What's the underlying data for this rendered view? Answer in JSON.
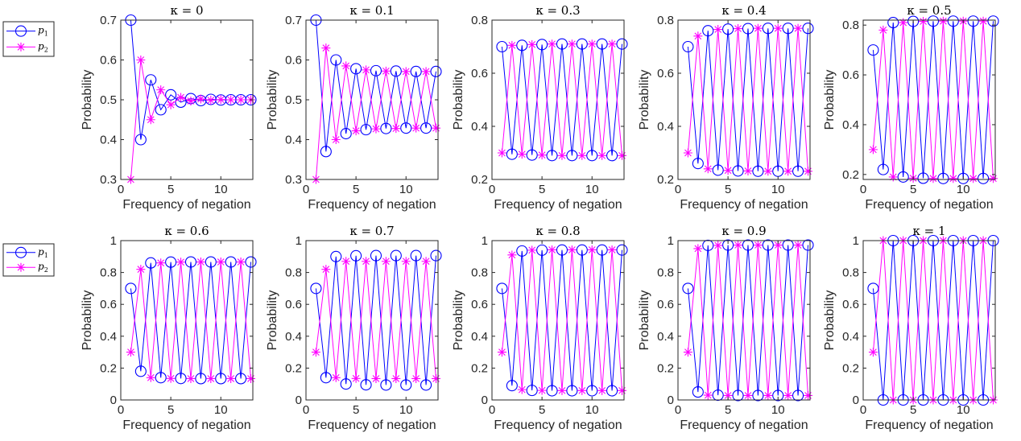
{
  "figure": {
    "legend": {
      "entries": [
        {
          "label": "p",
          "subscript": "1",
          "color": "#0000FF",
          "marker": "circle"
        },
        {
          "label": "p",
          "subscript": "2",
          "color": "#FF00FF",
          "marker": "asterisk"
        }
      ]
    }
  },
  "chart_data": [
    {
      "type": "line",
      "title": "κ = 0",
      "xlabel": "Frequency of negation",
      "ylabel": "Probability",
      "xlim": [
        0,
        13.2
      ],
      "ylim": [
        0.3,
        0.7
      ],
      "xticks": [
        0,
        5,
        10
      ],
      "yticks": [
        0.3,
        0.4,
        0.5,
        0.6,
        0.7
      ],
      "x": [
        1,
        2,
        3,
        4,
        5,
        6,
        7,
        8,
        9,
        10,
        11,
        12,
        13
      ],
      "series": [
        {
          "name": "p1",
          "color": "#0000FF",
          "marker": "circle",
          "values": [
            0.7,
            0.4,
            0.55,
            0.475,
            0.5125,
            0.494,
            0.503,
            0.498,
            0.501,
            0.4995,
            0.5,
            0.5,
            0.5
          ]
        },
        {
          "name": "p2",
          "color": "#FF00FF",
          "marker": "asterisk",
          "values": [
            0.3,
            0.6,
            0.45,
            0.525,
            0.4875,
            0.506,
            0.497,
            0.502,
            0.499,
            0.5005,
            0.5,
            0.5,
            0.5
          ]
        }
      ]
    },
    {
      "type": "line",
      "title": "κ = 0.1",
      "xlabel": "Frequency of negation",
      "ylabel": "Probability",
      "xlim": [
        0,
        13.2
      ],
      "ylim": [
        0.3,
        0.7
      ],
      "xticks": [
        0,
        5,
        10
      ],
      "yticks": [
        0.3,
        0.4,
        0.5,
        0.6,
        0.7
      ],
      "x": [
        1,
        2,
        3,
        4,
        5,
        6,
        7,
        8,
        9,
        10,
        11,
        12,
        13
      ],
      "series": [
        {
          "name": "p1",
          "color": "#0000FF",
          "marker": "circle",
          "values": [
            0.7,
            0.37,
            0.6,
            0.415,
            0.578,
            0.425,
            0.573,
            0.428,
            0.572,
            0.429,
            0.571,
            0.429,
            0.571
          ]
        },
        {
          "name": "p2",
          "color": "#FF00FF",
          "marker": "asterisk",
          "values": [
            0.3,
            0.63,
            0.4,
            0.585,
            0.422,
            0.575,
            0.427,
            0.572,
            0.428,
            0.571,
            0.429,
            0.571,
            0.429
          ]
        }
      ]
    },
    {
      "type": "line",
      "title": "κ = 0.3",
      "xlabel": "Frequency of negation",
      "ylabel": "Probability",
      "xlim": [
        0,
        13.2
      ],
      "ylim": [
        0.2,
        0.8
      ],
      "xticks": [
        0,
        5,
        10
      ],
      "yticks": [
        0.2,
        0.4,
        0.6,
        0.8
      ],
      "x": [
        1,
        2,
        3,
        4,
        5,
        6,
        7,
        8,
        9,
        10,
        11,
        12,
        13
      ],
      "series": [
        {
          "name": "p1",
          "color": "#0000FF",
          "marker": "circle",
          "values": [
            0.7,
            0.295,
            0.705,
            0.292,
            0.708,
            0.29,
            0.71,
            0.29,
            0.71,
            0.29,
            0.71,
            0.29,
            0.71
          ]
        },
        {
          "name": "p2",
          "color": "#FF00FF",
          "marker": "asterisk",
          "values": [
            0.3,
            0.705,
            0.295,
            0.708,
            0.292,
            0.71,
            0.29,
            0.71,
            0.29,
            0.71,
            0.29,
            0.71,
            0.29
          ]
        }
      ]
    },
    {
      "type": "line",
      "title": "κ = 0.4",
      "xlabel": "Frequency of negation",
      "ylabel": "Probability",
      "xlim": [
        0,
        13.2
      ],
      "ylim": [
        0.2,
        0.8
      ],
      "xticks": [
        0,
        5,
        10
      ],
      "yticks": [
        0.2,
        0.4,
        0.6,
        0.8
      ],
      "x": [
        1,
        2,
        3,
        4,
        5,
        6,
        7,
        8,
        9,
        10,
        11,
        12,
        13
      ],
      "series": [
        {
          "name": "p1",
          "color": "#0000FF",
          "marker": "circle",
          "values": [
            0.7,
            0.26,
            0.76,
            0.235,
            0.766,
            0.232,
            0.768,
            0.231,
            0.769,
            0.231,
            0.769,
            0.231,
            0.769
          ]
        },
        {
          "name": "p2",
          "color": "#FF00FF",
          "marker": "asterisk",
          "values": [
            0.3,
            0.74,
            0.24,
            0.765,
            0.234,
            0.768,
            0.232,
            0.769,
            0.231,
            0.769,
            0.231,
            0.769,
            0.231
          ]
        }
      ]
    },
    {
      "type": "line",
      "title": "κ = 0.5",
      "xlabel": "Frequency of negation",
      "ylabel": "Probability",
      "xlim": [
        0,
        13.2
      ],
      "ylim": [
        0.18,
        0.82
      ],
      "xticks": [
        0,
        5,
        10
      ],
      "yticks": [
        0.2,
        0.4,
        0.6,
        0.8
      ],
      "x": [
        1,
        2,
        3,
        4,
        5,
        6,
        7,
        8,
        9,
        10,
        11,
        12,
        13
      ],
      "series": [
        {
          "name": "p1",
          "color": "#0000FF",
          "marker": "circle",
          "values": [
            0.7,
            0.22,
            0.81,
            0.19,
            0.815,
            0.185,
            0.816,
            0.184,
            0.816,
            0.184,
            0.816,
            0.184,
            0.816
          ]
        },
        {
          "name": "p2",
          "color": "#FF00FF",
          "marker": "asterisk",
          "values": [
            0.3,
            0.78,
            0.19,
            0.81,
            0.185,
            0.815,
            0.184,
            0.816,
            0.184,
            0.816,
            0.184,
            0.816,
            0.184
          ]
        }
      ]
    },
    {
      "type": "line",
      "title": "κ = 0.6",
      "xlabel": "Frequency of negation",
      "ylabel": "Probability",
      "xlim": [
        0,
        13.2
      ],
      "ylim": [
        0,
        1
      ],
      "xticks": [
        0,
        5,
        10
      ],
      "yticks": [
        0,
        0.2,
        0.4,
        0.6,
        0.8,
        1
      ],
      "x": [
        1,
        2,
        3,
        4,
        5,
        6,
        7,
        8,
        9,
        10,
        11,
        12,
        13
      ],
      "series": [
        {
          "name": "p1",
          "color": "#0000FF",
          "marker": "circle",
          "values": [
            0.7,
            0.18,
            0.86,
            0.14,
            0.865,
            0.135,
            0.866,
            0.134,
            0.866,
            0.134,
            0.866,
            0.134,
            0.866
          ]
        },
        {
          "name": "p2",
          "color": "#FF00FF",
          "marker": "asterisk",
          "values": [
            0.3,
            0.82,
            0.14,
            0.86,
            0.135,
            0.865,
            0.134,
            0.866,
            0.134,
            0.866,
            0.134,
            0.866,
            0.134
          ]
        }
      ]
    },
    {
      "type": "line",
      "title": "κ = 0.7",
      "xlabel": "Frequency of negation",
      "ylabel": "Probability",
      "xlim": [
        0,
        13.2
      ],
      "ylim": [
        0,
        1
      ],
      "xticks": [
        0,
        5,
        10
      ],
      "yticks": [
        0,
        0.2,
        0.4,
        0.6,
        0.8,
        1
      ],
      "x": [
        1,
        2,
        3,
        4,
        5,
        6,
        7,
        8,
        9,
        10,
        11,
        12,
        13
      ],
      "series": [
        {
          "name": "p1",
          "color": "#0000FF",
          "marker": "circle",
          "values": [
            0.7,
            0.14,
            0.9,
            0.1,
            0.905,
            0.095,
            0.906,
            0.094,
            0.906,
            0.094,
            0.906,
            0.094,
            0.906
          ]
        },
        {
          "name": "p2",
          "color": "#FF00FF",
          "marker": "asterisk",
          "values": [
            0.3,
            0.82,
            0.14,
            0.87,
            0.135,
            0.87,
            0.134,
            0.87,
            0.134,
            0.87,
            0.134,
            0.87,
            0.134
          ]
        }
      ]
    },
    {
      "type": "line",
      "title": "κ = 0.8",
      "xlabel": "Frequency of negation",
      "ylabel": "Probability",
      "xlim": [
        0,
        13.2
      ],
      "ylim": [
        0,
        1
      ],
      "xticks": [
        0,
        5,
        10
      ],
      "yticks": [
        0,
        0.2,
        0.4,
        0.6,
        0.8,
        1
      ],
      "x": [
        1,
        2,
        3,
        4,
        5,
        6,
        7,
        8,
        9,
        10,
        11,
        12,
        13
      ],
      "series": [
        {
          "name": "p1",
          "color": "#0000FF",
          "marker": "circle",
          "values": [
            0.7,
            0.09,
            0.935,
            0.06,
            0.94,
            0.058,
            0.941,
            0.058,
            0.941,
            0.058,
            0.941,
            0.058,
            0.941
          ]
        },
        {
          "name": "p2",
          "color": "#FF00FF",
          "marker": "asterisk",
          "values": [
            0.3,
            0.91,
            0.065,
            0.94,
            0.06,
            0.942,
            0.059,
            0.942,
            0.059,
            0.942,
            0.059,
            0.942,
            0.059
          ]
        }
      ]
    },
    {
      "type": "line",
      "title": "κ = 0.9",
      "xlabel": "Frequency of negation",
      "ylabel": "Probability",
      "xlim": [
        0,
        13.2
      ],
      "ylim": [
        0,
        1
      ],
      "xticks": [
        0,
        5,
        10
      ],
      "yticks": [
        0,
        0.2,
        0.4,
        0.6,
        0.8,
        1
      ],
      "x": [
        1,
        2,
        3,
        4,
        5,
        6,
        7,
        8,
        9,
        10,
        11,
        12,
        13
      ],
      "series": [
        {
          "name": "p1",
          "color": "#0000FF",
          "marker": "circle",
          "values": [
            0.7,
            0.05,
            0.97,
            0.03,
            0.972,
            0.028,
            0.972,
            0.028,
            0.972,
            0.028,
            0.972,
            0.028,
            0.972
          ]
        },
        {
          "name": "p2",
          "color": "#FF00FF",
          "marker": "asterisk",
          "values": [
            0.3,
            0.95,
            0.03,
            0.97,
            0.028,
            0.972,
            0.028,
            0.972,
            0.028,
            0.972,
            0.028,
            0.972,
            0.028
          ]
        }
      ]
    },
    {
      "type": "line",
      "title": "κ = 1",
      "xlabel": "Frequency of negation",
      "ylabel": "Probability",
      "xlim": [
        0,
        13.2
      ],
      "ylim": [
        0,
        1
      ],
      "xticks": [
        0,
        5,
        10
      ],
      "yticks": [
        0,
        0.2,
        0.4,
        0.6,
        0.8,
        1
      ],
      "x": [
        1,
        2,
        3,
        4,
        5,
        6,
        7,
        8,
        9,
        10,
        11,
        12,
        13
      ],
      "series": [
        {
          "name": "p1",
          "color": "#0000FF",
          "marker": "circle",
          "values": [
            0.7,
            0,
            1,
            0,
            1,
            0,
            1,
            0,
            1,
            0,
            1,
            0,
            1
          ]
        },
        {
          "name": "p2",
          "color": "#FF00FF",
          "marker": "asterisk",
          "values": [
            0.3,
            1,
            0,
            1,
            0,
            1,
            0,
            1,
            0,
            1,
            0,
            1,
            0
          ]
        }
      ]
    }
  ]
}
